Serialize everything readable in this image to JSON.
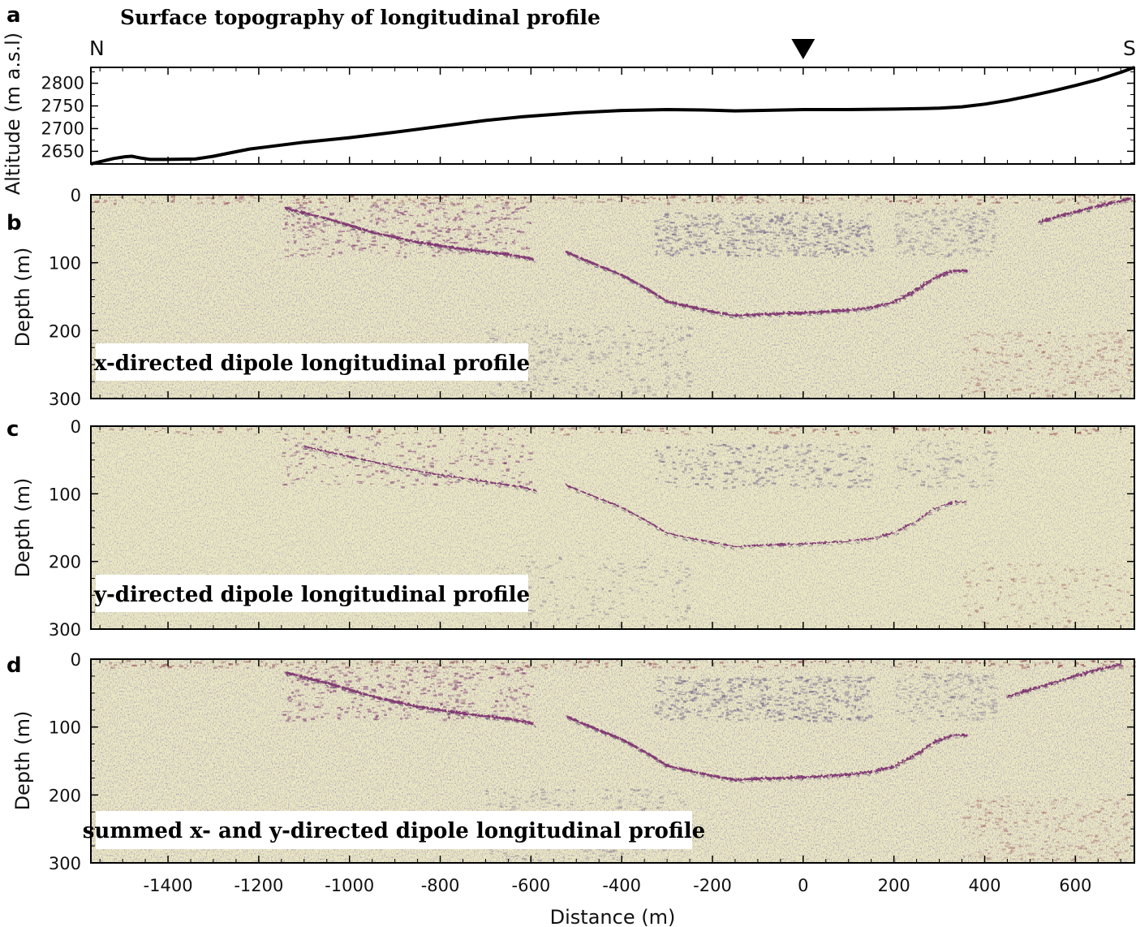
{
  "chart_data": [
    {
      "panel": "a",
      "type": "line",
      "title": "Surface topography of longitudinal profile",
      "xlabel": "",
      "ylabel": "Altitude (m a.s.l)",
      "north_label": "N",
      "south_label": "S",
      "marker_x": 0,
      "xlim": [
        -1570,
        730
      ],
      "ylim": [
        2622,
        2835
      ],
      "yticks": [
        2650,
        2700,
        2750,
        2800
      ],
      "series": [
        {
          "x": [
            -1570,
            -1545,
            -1520,
            -1495,
            -1480,
            -1460,
            -1440,
            -1400,
            -1340,
            -1300,
            -1260,
            -1220,
            -1180,
            -1100,
            -1000,
            -900,
            -800,
            -700,
            -620,
            -500,
            -400,
            -300,
            -220,
            -150,
            -100,
            0,
            100,
            200,
            300,
            350,
            400,
            450,
            500,
            550,
            600,
            650,
            700,
            730
          ],
          "y": [
            2622,
            2628,
            2634,
            2638,
            2639,
            2635,
            2632,
            2632,
            2633,
            2639,
            2647,
            2655,
            2660,
            2670,
            2680,
            2692,
            2705,
            2718,
            2726,
            2735,
            2740,
            2742,
            2741,
            2739,
            2740,
            2742,
            2742,
            2743,
            2745,
            2748,
            2754,
            2762,
            2772,
            2783,
            2795,
            2808,
            2824,
            2835
          ]
        }
      ]
    },
    {
      "panel": "b",
      "type": "heatmap",
      "label": "x-directed dipole longitudinal profile",
      "ylabel": "Depth (m)",
      "ylim": [
        300,
        0
      ],
      "yticks": [
        0,
        100,
        200,
        300
      ],
      "reflectors": [
        {
          "x": [
            -1140,
            -1050,
            -950,
            -850,
            -750,
            -650,
            -590
          ],
          "y": [
            20,
            35,
            55,
            70,
            80,
            88,
            95
          ]
        },
        {
          "x": [
            -520,
            -460,
            -400,
            -340,
            -300,
            -260,
            -200,
            -150,
            -100,
            0,
            100,
            150,
            200,
            250,
            290,
            330,
            360
          ],
          "y": [
            85,
            102,
            118,
            140,
            157,
            163,
            172,
            178,
            176,
            174,
            170,
            166,
            158,
            140,
            122,
            112,
            112
          ]
        },
        {
          "x": [
            520,
            560,
            600,
            640,
            680,
            720
          ],
          "y": [
            40,
            32,
            25,
            18,
            12,
            6
          ]
        }
      ]
    },
    {
      "panel": "c",
      "type": "heatmap",
      "label": "y-directed dipole longitudinal profile",
      "ylabel": "Depth (m)",
      "ylim": [
        300,
        0
      ],
      "yticks": [
        0,
        100,
        200,
        300
      ],
      "reflectors": [
        {
          "x": [
            -1100,
            -1000,
            -900,
            -800,
            -700,
            -620,
            -590
          ],
          "y": [
            30,
            45,
            60,
            72,
            82,
            90,
            95
          ]
        },
        {
          "x": [
            -520,
            -460,
            -400,
            -340,
            -300,
            -260,
            -200,
            -150,
            -100,
            0,
            100,
            150,
            200,
            250,
            290,
            330,
            360
          ],
          "y": [
            88,
            104,
            120,
            142,
            158,
            164,
            172,
            178,
            176,
            174,
            170,
            166,
            158,
            140,
            122,
            112,
            112
          ]
        }
      ]
    },
    {
      "panel": "d",
      "type": "heatmap",
      "label": "summed x- and y-directed dipole longitudinal profile",
      "xlabel": "Distance (m)",
      "ylabel": "Depth (m)",
      "xlim": [
        -1570,
        730
      ],
      "xticks": [
        -1400,
        -1200,
        -1000,
        -800,
        -600,
        -400,
        -200,
        0,
        200,
        400,
        600
      ],
      "ylim": [
        300,
        0
      ],
      "yticks": [
        0,
        100,
        200,
        300
      ],
      "reflectors": [
        {
          "x": [
            -1140,
            -1050,
            -950,
            -850,
            -750,
            -650,
            -590
          ],
          "y": [
            20,
            35,
            55,
            70,
            80,
            88,
            95
          ]
        },
        {
          "x": [
            -520,
            -460,
            -400,
            -340,
            -300,
            -260,
            -200,
            -150,
            -100,
            0,
            100,
            150,
            200,
            250,
            290,
            330,
            360
          ],
          "y": [
            85,
            102,
            118,
            140,
            157,
            163,
            172,
            178,
            176,
            174,
            170,
            166,
            158,
            140,
            122,
            112,
            112
          ]
        },
        {
          "x": [
            450,
            500,
            550,
            600,
            650,
            700
          ],
          "y": [
            55,
            45,
            35,
            25,
            15,
            8
          ]
        }
      ]
    }
  ],
  "colors": {
    "background": "#ecebc4",
    "reflector": "#7a2e6e",
    "noise_dark": "#5d4f80",
    "noise_red": "#8c3b4a",
    "topo_line": "#000000"
  }
}
